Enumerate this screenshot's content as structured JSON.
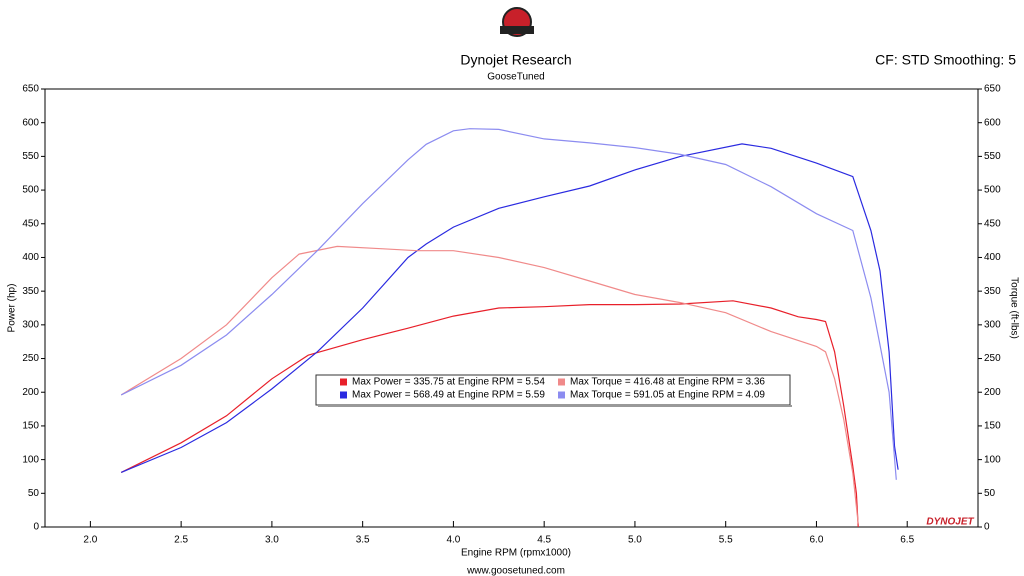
{
  "chart_data": {
    "type": "line",
    "title": "Dynojet Research",
    "subtitle": "GooseTuned",
    "settings_text": "CF: STD Smoothing: 5",
    "footer": "www.goosetuned.com",
    "brand": "DYNOJET",
    "x_label": "Engine RPM (rpmx1000)",
    "y_label": "Power (hp)",
    "y2_label": "Torque (ft-lbs)",
    "xlim": [
      1.75,
      6.89
    ],
    "xticks": [
      {
        "value": 2,
        "label": "2.0"
      },
      2.5,
      {
        "value": 3,
        "label": "3.0"
      },
      3.5,
      {
        "value": 4,
        "label": "4.0"
      },
      4.5,
      {
        "value": 5,
        "label": "5.0"
      },
      5.5,
      {
        "value": 6,
        "label": "6.0"
      },
      6.5
    ],
    "ylim": [
      0,
      650
    ],
    "yticks": [
      0,
      50,
      100,
      150,
      200,
      250,
      300,
      350,
      400,
      450,
      500,
      550,
      600,
      650
    ],
    "y2lim": [
      0,
      650
    ],
    "y2ticks": [
      0,
      50,
      100,
      150,
      200,
      250,
      300,
      350,
      400,
      450,
      500,
      550,
      600,
      650
    ],
    "series": [
      {
        "name": "Max Power = 335.75 at Engine RPM = 5.54",
        "color": "#e8202a",
        "x": [
          2.17,
          2.5,
          2.75,
          3.0,
          3.2,
          3.5,
          3.75,
          4.0,
          4.25,
          4.5,
          4.75,
          5.0,
          5.25,
          5.54,
          5.75,
          5.9,
          6.0,
          6.05,
          6.1,
          6.15,
          6.2,
          6.22,
          6.23
        ],
        "values": [
          81,
          125,
          165,
          220,
          255,
          278,
          295,
          313,
          325,
          327,
          330,
          330,
          331,
          335.75,
          325,
          312,
          308,
          305,
          260,
          180,
          90,
          50,
          0
        ]
      },
      {
        "name": "Max Power = 568.49 at Engine RPM = 5.59",
        "color": "#2a2ae0",
        "x": [
          2.17,
          2.5,
          2.75,
          3.0,
          3.25,
          3.5,
          3.75,
          3.85,
          4.0,
          4.25,
          4.5,
          4.75,
          5.0,
          5.25,
          5.59,
          5.75,
          6.0,
          6.2,
          6.3,
          6.35,
          6.4,
          6.43,
          6.45
        ],
        "values": [
          81,
          118,
          155,
          205,
          260,
          325,
          400,
          420,
          445,
          473,
          490,
          506,
          530,
          550,
          568.49,
          562,
          540,
          520,
          440,
          380,
          260,
          120,
          85
        ]
      },
      {
        "name": "Max Torque = 416.48 at Engine RPM = 3.36",
        "color": "#f08a8a",
        "axis": "y2",
        "x": [
          2.17,
          2.5,
          2.75,
          3.0,
          3.15,
          3.36,
          3.6,
          3.8,
          4.0,
          4.25,
          4.5,
          4.75,
          5.0,
          5.25,
          5.5,
          5.75,
          6.0,
          6.05,
          6.1,
          6.15,
          6.2,
          6.22,
          6.23
        ],
        "values": [
          196,
          250,
          300,
          370,
          405,
          416.48,
          413,
          410,
          410,
          400,
          385,
          365,
          345,
          333,
          318,
          290,
          268,
          260,
          220,
          160,
          80,
          30,
          5
        ]
      },
      {
        "name": "Max Torque = 591.05 at Engine RPM = 4.09",
        "color": "#8c8cf0",
        "axis": "y2",
        "x": [
          2.17,
          2.5,
          2.75,
          3.0,
          3.25,
          3.5,
          3.75,
          3.85,
          4.0,
          4.09,
          4.25,
          4.5,
          4.75,
          5.0,
          5.25,
          5.5,
          5.75,
          6.0,
          6.2,
          6.3,
          6.4,
          6.44
        ],
        "values": [
          196,
          240,
          285,
          345,
          410,
          480,
          545,
          568,
          588,
          591.05,
          590,
          576,
          570,
          563,
          553,
          538,
          505,
          465,
          440,
          340,
          200,
          70
        ]
      }
    ]
  }
}
